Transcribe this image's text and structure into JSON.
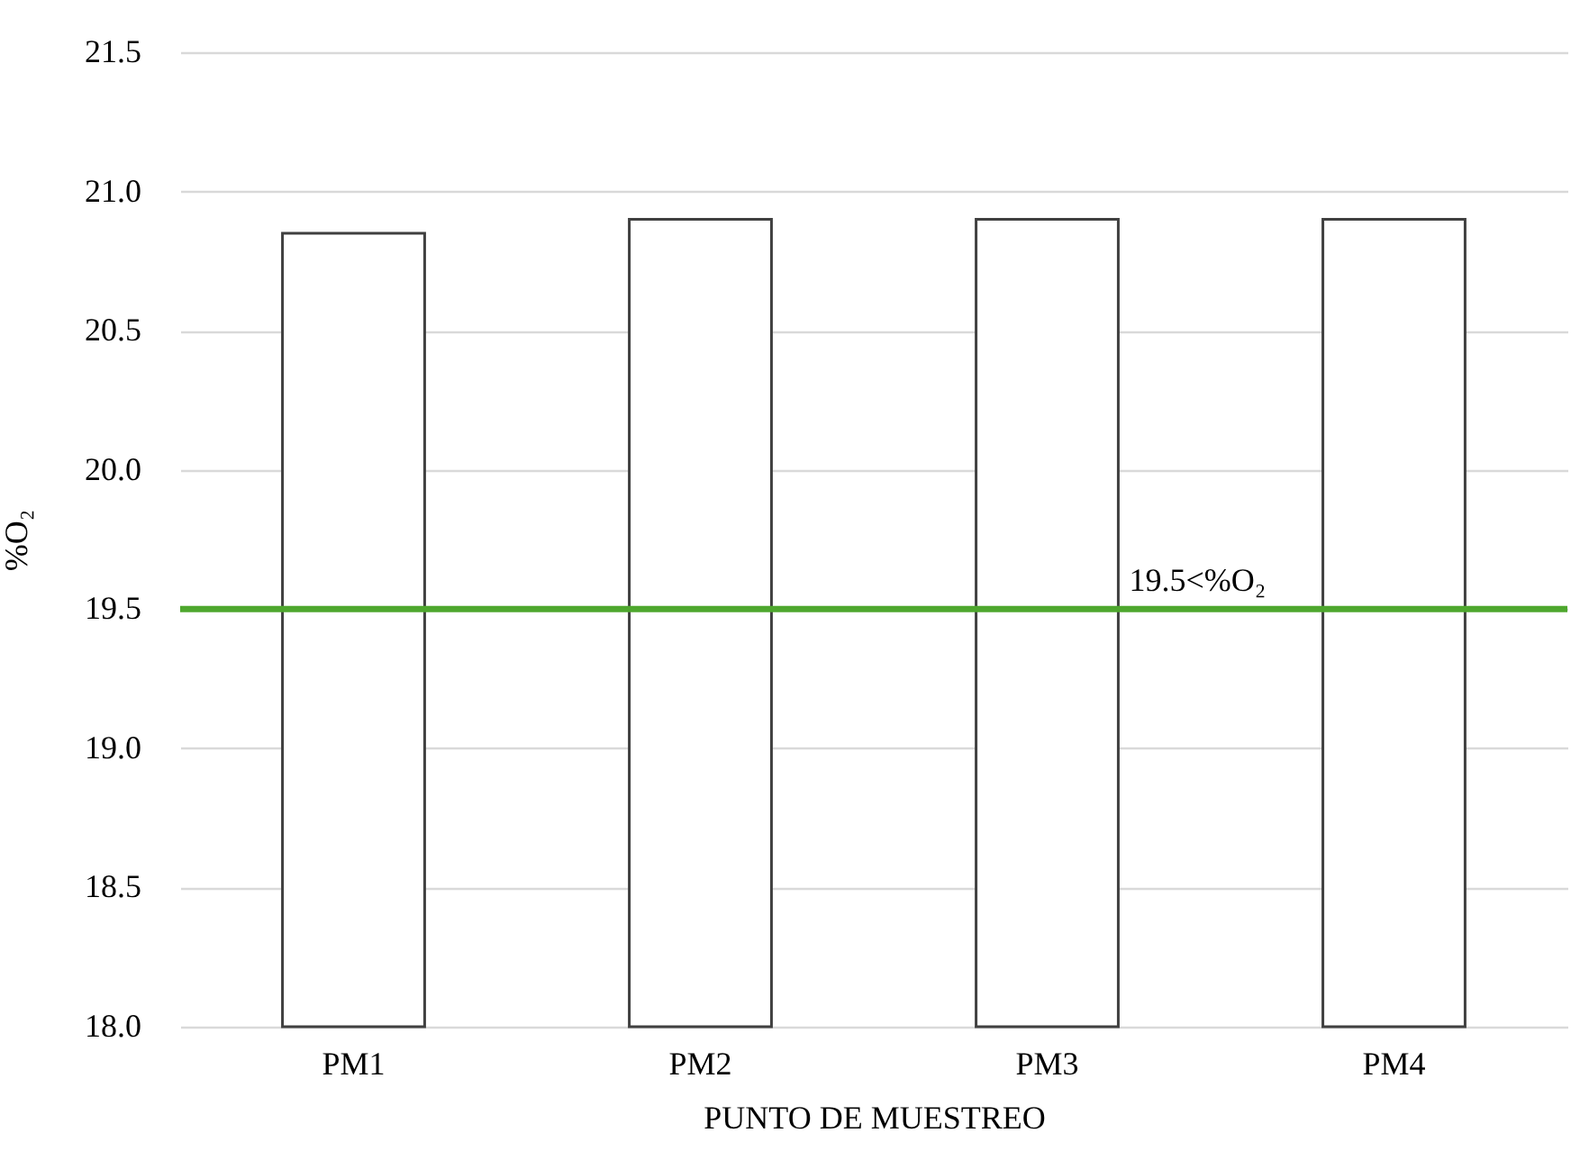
{
  "chart_data": {
    "type": "bar",
    "categories": [
      "PM1",
      "PM2",
      "PM3",
      "PM4"
    ],
    "values": [
      20.85,
      20.9,
      20.9,
      20.9
    ],
    "color": "#ffffff",
    "xlabel": "PUNTO DE MUESTREO",
    "ylabel": "%O₂",
    "ylim": [
      18,
      21.5
    ],
    "yticks": [
      {
        "value": 18,
        "label": "18.0"
      },
      18.5,
      {
        "value": 19,
        "label": "19.0"
      },
      19.5,
      {
        "value": 20,
        "label": "20.0"
      },
      20.5,
      {
        "value": 21,
        "label": "21.0"
      },
      21.5
    ],
    "grid": "y",
    "ref_lines": [
      {
        "axis": "y",
        "value": 19.5,
        "label": "19.5<%O₂",
        "color": "#4ea72e",
        "line_style": "solid"
      }
    ]
  }
}
